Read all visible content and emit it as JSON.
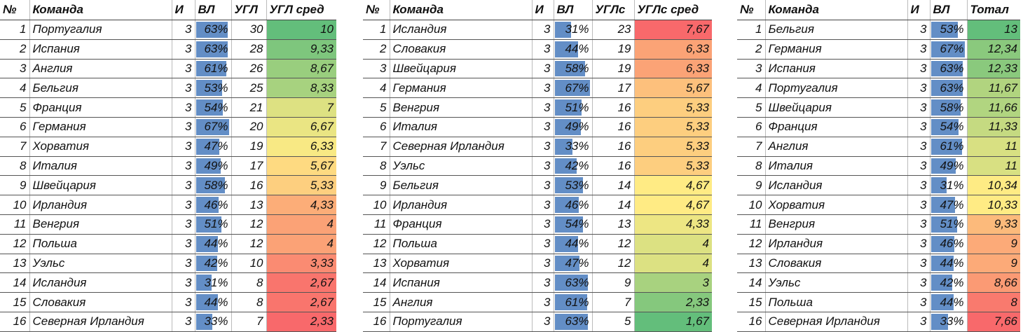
{
  "colors": {
    "bar": "#638EC6",
    "scale_low": "#F8696B",
    "scale_mid": "#FFEB84",
    "scale_high": "#63BE7B"
  },
  "tables": [
    {
      "headers": [
        "№",
        "Команда",
        "И",
        "ВЛ",
        "УГЛ",
        "УГЛ сред"
      ],
      "scale": "high-green",
      "rows": [
        [
          "1",
          "Португалия",
          "3",
          "63%",
          "30",
          "10"
        ],
        [
          "2",
          "Испания",
          "3",
          "63%",
          "28",
          "9,33"
        ],
        [
          "3",
          "Англия",
          "3",
          "61%",
          "26",
          "8,67"
        ],
        [
          "4",
          "Бельгия",
          "3",
          "53%",
          "25",
          "8,33"
        ],
        [
          "5",
          "Франция",
          "3",
          "54%",
          "21",
          "7"
        ],
        [
          "6",
          "Германия",
          "3",
          "67%",
          "20",
          "6,67"
        ],
        [
          "7",
          "Хорватия",
          "3",
          "47%",
          "19",
          "6,33"
        ],
        [
          "8",
          "Италия",
          "3",
          "49%",
          "17",
          "5,67"
        ],
        [
          "9",
          "Швейцария",
          "3",
          "58%",
          "16",
          "5,33"
        ],
        [
          "10",
          "Ирландия",
          "3",
          "46%",
          "13",
          "4,33"
        ],
        [
          "11",
          "Венгрия",
          "3",
          "51%",
          "12",
          "4"
        ],
        [
          "12",
          "Польша",
          "3",
          "44%",
          "12",
          "4"
        ],
        [
          "13",
          "Уэльс",
          "3",
          "42%",
          "10",
          "3,33"
        ],
        [
          "14",
          "Исландия",
          "3",
          "31%",
          "8",
          "2,67"
        ],
        [
          "15",
          "Словакия",
          "3",
          "44%",
          "8",
          "2,67"
        ],
        [
          "16",
          "Северная Ирландия",
          "3",
          "33%",
          "7",
          "2,33"
        ]
      ]
    },
    {
      "headers": [
        "№",
        "Команда",
        "И",
        "ВЛ",
        "УГЛс",
        "УГЛс сред"
      ],
      "scale": "high-red",
      "rows": [
        [
          "1",
          "Исландия",
          "3",
          "31%",
          "23",
          "7,67"
        ],
        [
          "2",
          "Словакия",
          "3",
          "44%",
          "19",
          "6,33"
        ],
        [
          "3",
          "Швейцария",
          "3",
          "58%",
          "19",
          "6,33"
        ],
        [
          "4",
          "Германия",
          "3",
          "67%",
          "17",
          "5,67"
        ],
        [
          "5",
          "Венгрия",
          "3",
          "51%",
          "16",
          "5,33"
        ],
        [
          "6",
          "Италия",
          "3",
          "49%",
          "16",
          "5,33"
        ],
        [
          "7",
          "Северная Ирландия",
          "3",
          "33%",
          "16",
          "5,33"
        ],
        [
          "8",
          "Уэльс",
          "3",
          "42%",
          "16",
          "5,33"
        ],
        [
          "9",
          "Бельгия",
          "3",
          "53%",
          "14",
          "4,67"
        ],
        [
          "10",
          "Ирландия",
          "3",
          "46%",
          "14",
          "4,67"
        ],
        [
          "11",
          "Франция",
          "3",
          "54%",
          "13",
          "4,33"
        ],
        [
          "12",
          "Польша",
          "3",
          "44%",
          "12",
          "4"
        ],
        [
          "13",
          "Хорватия",
          "3",
          "47%",
          "12",
          "4"
        ],
        [
          "14",
          "Испания",
          "3",
          "63%",
          "9",
          "3"
        ],
        [
          "15",
          "Англия",
          "3",
          "61%",
          "7",
          "2,33"
        ],
        [
          "16",
          "Португалия",
          "3",
          "63%",
          "5",
          "1,67"
        ]
      ]
    },
    {
      "headers": [
        "№",
        "Команда",
        "И",
        "ВЛ",
        "Тотал"
      ],
      "scale": "high-green",
      "rows": [
        [
          "1",
          "Бельгия",
          "3",
          "53%",
          "13"
        ],
        [
          "2",
          "Германия",
          "3",
          "67%",
          "12,34"
        ],
        [
          "3",
          "Испания",
          "3",
          "63%",
          "12,33"
        ],
        [
          "4",
          "Португалия",
          "3",
          "63%",
          "11,67"
        ],
        [
          "5",
          "Швейцария",
          "3",
          "58%",
          "11,66"
        ],
        [
          "6",
          "Франция",
          "3",
          "54%",
          "11,33"
        ],
        [
          "7",
          "Англия",
          "3",
          "61%",
          "11"
        ],
        [
          "8",
          "Италия",
          "3",
          "49%",
          "11"
        ],
        [
          "9",
          "Исландия",
          "3",
          "31%",
          "10,34"
        ],
        [
          "10",
          "Хорватия",
          "3",
          "47%",
          "10,33"
        ],
        [
          "11",
          "Венгрия",
          "3",
          "51%",
          "9,33"
        ],
        [
          "12",
          "Ирландия",
          "3",
          "46%",
          "9"
        ],
        [
          "13",
          "Словакия",
          "3",
          "44%",
          "9"
        ],
        [
          "14",
          "Уэльс",
          "3",
          "42%",
          "8,66"
        ],
        [
          "15",
          "Польша",
          "3",
          "44%",
          "8"
        ],
        [
          "16",
          "Северная Ирландия",
          "3",
          "33%",
          "7,66"
        ]
      ]
    }
  ]
}
